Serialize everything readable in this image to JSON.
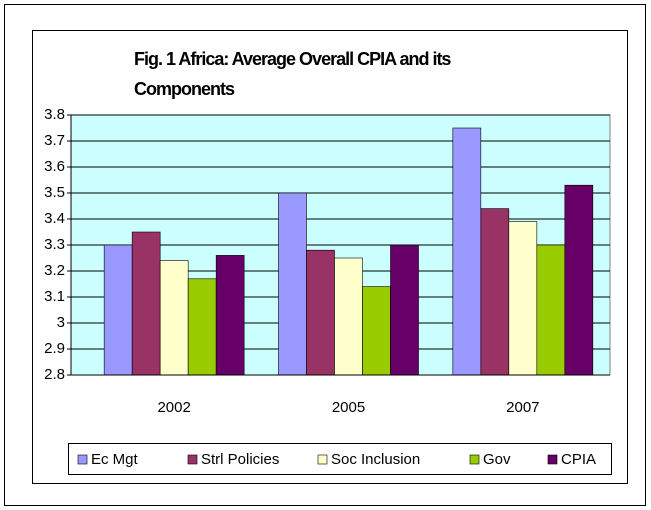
{
  "chart_data": {
    "type": "bar",
    "title": "Fig. 1 Africa: Average Overall CPIA and its Components",
    "categories": [
      "2002",
      "2005",
      "2007"
    ],
    "series": [
      {
        "name": "Ec Mgt",
        "color": "#9999ff",
        "values": [
          3.3,
          3.5,
          3.75
        ]
      },
      {
        "name": "Strl Policies",
        "color": "#993366",
        "values": [
          3.35,
          3.28,
          3.44
        ]
      },
      {
        "name": "Soc Inclusion",
        "color": "#ffffcc",
        "values": [
          3.24,
          3.25,
          3.39
        ]
      },
      {
        "name": "Gov",
        "color": "#99cc00",
        "values": [
          3.17,
          3.14,
          3.3
        ]
      },
      {
        "name": "CPIA",
        "color": "#660066",
        "values": [
          3.26,
          3.3,
          3.53
        ]
      }
    ],
    "ylim": [
      2.8,
      3.8
    ],
    "yticks": [
      2.8,
      2.9,
      3,
      3.1,
      3.2,
      3.3,
      3.4,
      3.5,
      3.6,
      3.7,
      3.8
    ],
    "grid": true,
    "legend": "bottom",
    "plot_background": "#ccffff"
  }
}
